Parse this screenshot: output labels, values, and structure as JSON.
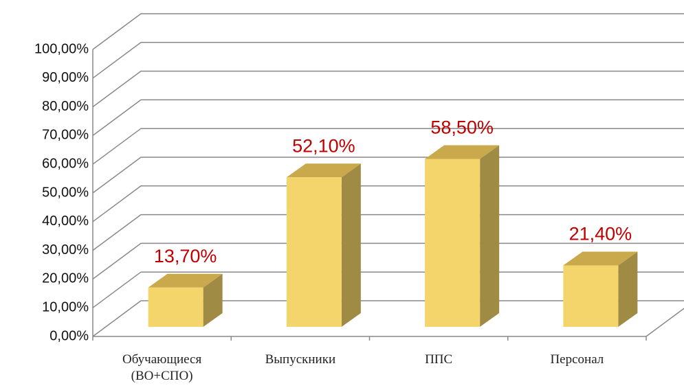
{
  "chart_data": {
    "type": "bar3d",
    "categories": [
      "Обучающиеся\n(ВО+СПО)",
      "Выпускники",
      "ППС",
      "Персонал"
    ],
    "values": [
      13.7,
      52.1,
      58.5,
      21.4
    ],
    "value_labels": [
      "13,70%",
      "52,10%",
      "58,50%",
      "21,40%"
    ],
    "color": "#f3d56b",
    "ylim": [
      0,
      100
    ],
    "yticks": [
      {
        "value": 0,
        "label": "0,00%"
      },
      {
        "value": 10,
        "label": "10,00%"
      },
      {
        "value": 20,
        "label": "20,00%"
      },
      {
        "value": 30,
        "label": "30,00%"
      },
      {
        "value": 40,
        "label": "40,00%"
      },
      {
        "value": 50,
        "label": "50,00%"
      },
      {
        "value": 60,
        "label": "60,00%"
      },
      {
        "value": 70,
        "label": "70,00%"
      },
      {
        "value": 80,
        "label": "80,00%"
      },
      {
        "value": 90,
        "label": "90,00%"
      },
      {
        "value": 100,
        "label": "100,00%"
      }
    ],
    "grid": true
  }
}
